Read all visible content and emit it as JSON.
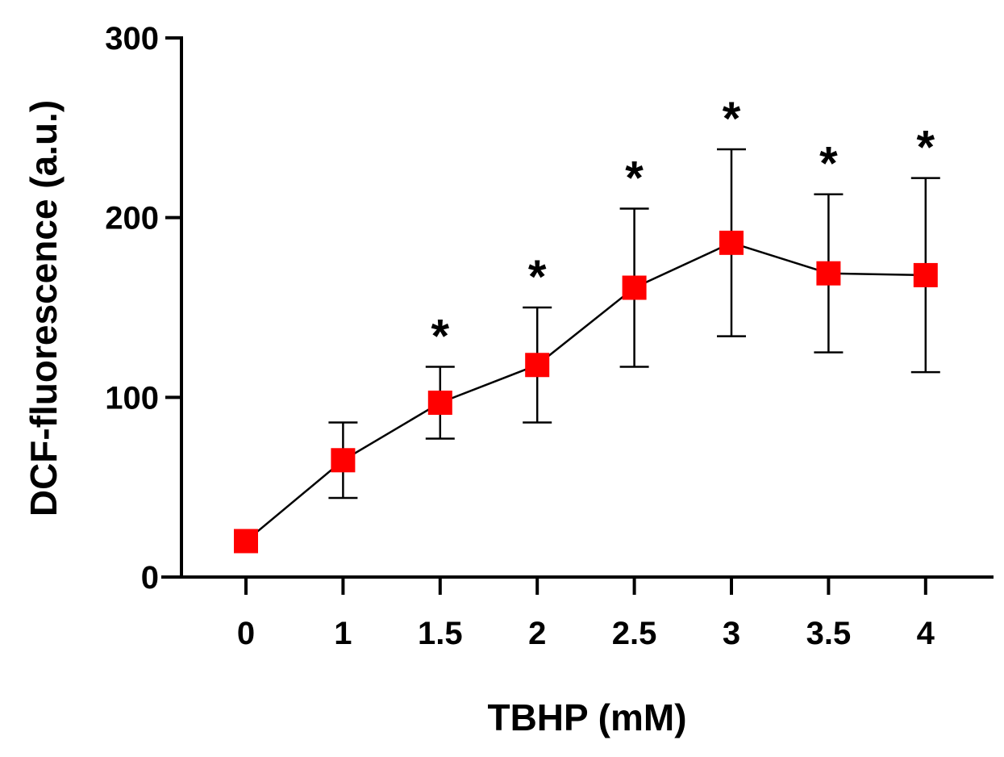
{
  "chart_data": {
    "type": "line",
    "title": "",
    "xlabel": "TBHP (mM)",
    "ylabel": "DCF-fluorescence (a.u.)",
    "categories": [
      "0",
      "1",
      "1.5",
      "2",
      "2.5",
      "3",
      "3.5",
      "4"
    ],
    "series": [
      {
        "name": "DCF-fluorescence",
        "color": "#ff0000",
        "marker": "square",
        "values": [
          20,
          65,
          97,
          118,
          161,
          186,
          169,
          168
        ],
        "error": [
          0,
          21,
          20,
          32,
          44,
          52,
          44,
          54
        ]
      }
    ],
    "significance": [
      "",
      "",
      "*",
      "*",
      "*",
      "*",
      "*",
      "*"
    ],
    "ylim": [
      0,
      300
    ],
    "yticks": [
      0,
      100,
      200,
      300
    ],
    "yticklabels": [
      "0",
      "100",
      "200",
      "300"
    ],
    "grid": false,
    "legend": "none"
  }
}
